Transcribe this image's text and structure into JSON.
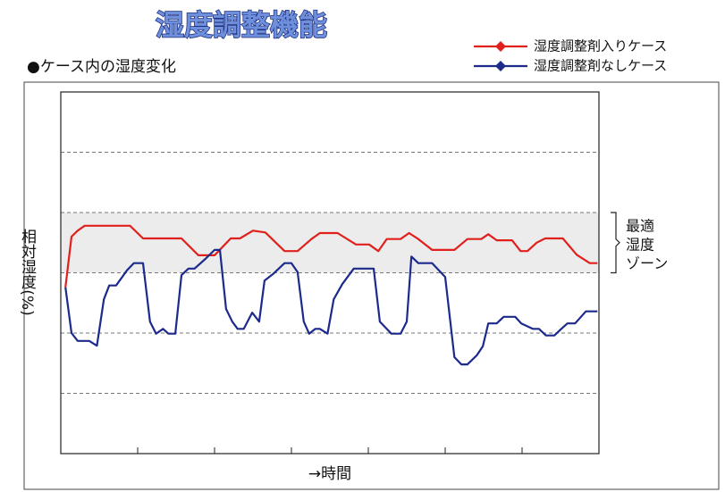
{
  "chart_data": {
    "type": "line",
    "title": "湿度調整機能",
    "subtitle": "●ケース内の湿度変化",
    "ylabel": "相対湿度(%)",
    "xlabel": "→時間",
    "legend": "upper right",
    "xlim": [
      0,
      7
    ],
    "ylim": [
      0,
      6
    ],
    "x_tick_marks": [
      1,
      2,
      3,
      4,
      5,
      6
    ],
    "grid_y": [
      1,
      2,
      3,
      4,
      5
    ],
    "zone": {
      "range": [
        3,
        4
      ],
      "color": "#ececec",
      "label": [
        "最適",
        "湿度",
        "ゾーン"
      ]
    },
    "series": [
      {
        "name": "湿度調整剤入りケース",
        "color": "#e0201c",
        "x": [
          0.06,
          0.14,
          0.22,
          0.31,
          0.9,
          1.07,
          1.57,
          1.79,
          2.0,
          2.21,
          2.33,
          2.5,
          2.66,
          2.91,
          3.08,
          3.26,
          3.37,
          3.6,
          3.84,
          4.01,
          4.13,
          4.24,
          4.42,
          4.53,
          4.65,
          4.83,
          5.12,
          5.29,
          5.47,
          5.56,
          5.67,
          5.87,
          5.98,
          6.07,
          6.19,
          6.3,
          6.53,
          6.71,
          6.88,
          6.98
        ],
        "values": [
          2.76,
          3.6,
          3.7,
          3.78,
          3.78,
          3.57,
          3.57,
          3.29,
          3.29,
          3.57,
          3.57,
          3.7,
          3.67,
          3.36,
          3.36,
          3.56,
          3.66,
          3.66,
          3.47,
          3.47,
          3.36,
          3.56,
          3.56,
          3.66,
          3.56,
          3.38,
          3.38,
          3.56,
          3.56,
          3.64,
          3.54,
          3.54,
          3.36,
          3.36,
          3.5,
          3.57,
          3.57,
          3.3,
          3.16,
          3.16
        ]
      },
      {
        "name": "湿度調整剤なしケース",
        "color": "#1c2a8c",
        "x": [
          0.06,
          0.14,
          0.22,
          0.37,
          0.47,
          0.56,
          0.63,
          0.72,
          0.86,
          0.95,
          1.07,
          1.16,
          1.24,
          1.33,
          1.4,
          1.49,
          1.57,
          1.66,
          1.74,
          1.88,
          2.0,
          2.07,
          2.15,
          2.23,
          2.3,
          2.38,
          2.49,
          2.58,
          2.65,
          2.76,
          2.91,
          3.0,
          3.08,
          3.16,
          3.23,
          3.31,
          3.37,
          3.47,
          3.55,
          3.66,
          3.81,
          4.07,
          4.15,
          4.24,
          4.3,
          4.42,
          4.5,
          4.56,
          4.65,
          4.83,
          5.0,
          5.12,
          5.21,
          5.29,
          5.41,
          5.49,
          5.56,
          5.67,
          5.76,
          5.91,
          5.99,
          6.14,
          6.22,
          6.31,
          6.42,
          6.51,
          6.59,
          6.69,
          6.83,
          6.98
        ],
        "values": [
          2.76,
          2.0,
          1.87,
          1.87,
          1.79,
          2.56,
          2.79,
          2.79,
          3.04,
          3.16,
          3.16,
          2.19,
          1.99,
          2.07,
          1.99,
          1.99,
          2.96,
          3.07,
          3.07,
          3.23,
          3.38,
          3.38,
          2.4,
          2.19,
          2.07,
          2.07,
          2.34,
          2.19,
          2.87,
          2.98,
          3.16,
          3.16,
          3.01,
          2.19,
          1.99,
          2.07,
          2.07,
          1.99,
          2.56,
          2.81,
          3.07,
          3.07,
          2.19,
          2.07,
          1.99,
          1.99,
          2.19,
          3.27,
          3.16,
          3.16,
          2.93,
          1.6,
          1.48,
          1.48,
          1.63,
          1.78,
          2.16,
          2.16,
          2.27,
          2.27,
          2.16,
          2.07,
          2.07,
          1.96,
          1.96,
          2.07,
          2.16,
          2.16,
          2.36,
          2.36
        ]
      }
    ]
  }
}
